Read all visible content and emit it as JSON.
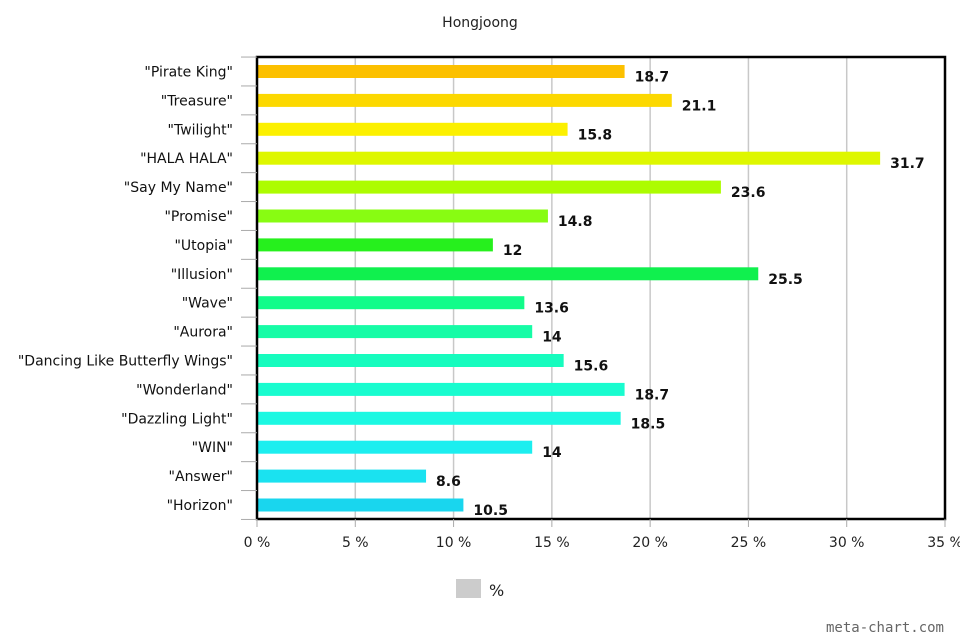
{
  "chart_data": {
    "type": "bar",
    "orientation": "horizontal",
    "title": "Hongjoong",
    "categories": [
      "\"Pirate King\"",
      "\"Treasure\"",
      "\"Twilight\"",
      "\"HALA HALA\"",
      "\"Say My Name\"",
      "\"Promise\"",
      "\"Utopia\"",
      "\"Illusion\"",
      "\"Wave\"",
      "\"Aurora\"",
      "\"Dancing Like Butterfly Wings\"",
      "\"Wonderland\"",
      "\"Dazzling Light\"",
      "\"WIN\"",
      "\"Answer\"",
      "\"Horizon\""
    ],
    "values": [
      18.7,
      21.1,
      15.8,
      31.7,
      23.6,
      14.8,
      12,
      25.5,
      13.6,
      14,
      15.6,
      18.7,
      18.5,
      14,
      8.6,
      10.5
    ],
    "value_labels": [
      "18.7",
      "21.1",
      "15.8",
      "31.7",
      "23.6",
      "14.8",
      "12",
      "25.5",
      "13.6",
      "14",
      "15.6",
      "18.7",
      "18.5",
      "14",
      "8.6",
      "10.5"
    ],
    "colors": [
      "#fcc000",
      "#fcd800",
      "#fcf000",
      "#def700",
      "#adfc00",
      "#88fc12",
      "#26f01d",
      "#10f04e",
      "#12fc8a",
      "#16fca6",
      "#16fcbe",
      "#19fccf",
      "#1cf8e2",
      "#1ceeef",
      "#1ae2f0",
      "#19d6ee"
    ],
    "xlim": [
      0,
      35
    ],
    "x_ticks": [
      0,
      5,
      10,
      15,
      20,
      25,
      30,
      35
    ],
    "x_tick_labels": [
      "0 %",
      "5 %",
      "10 %",
      "15 %",
      "20 %",
      "25 %",
      "30 %",
      "35 %"
    ],
    "grid": "vertical",
    "legend": {
      "label": "%",
      "swatch_color": "#cccccc",
      "position": "bottom-center"
    }
  },
  "watermark": "meta-chart.com"
}
